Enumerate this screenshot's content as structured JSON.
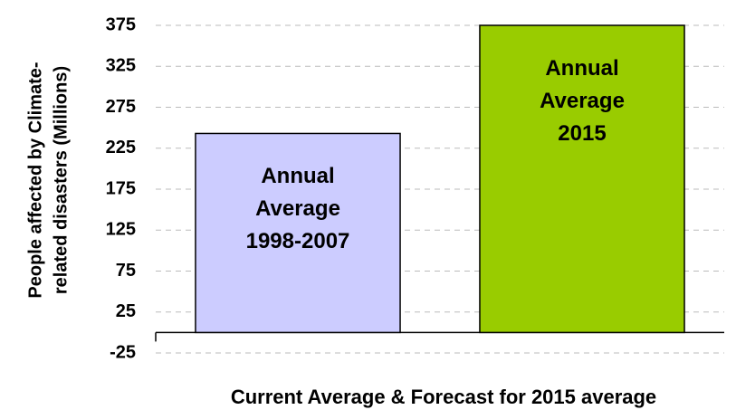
{
  "chart_data": {
    "type": "bar",
    "ylabel": [
      "People affected by Climate-",
      "related disasters (Millions)"
    ],
    "xlabel": "Current Average & Forecast for 2015 average",
    "categories": [
      "Annual Average 1998-2007",
      "Annual Average 2015"
    ],
    "values": [
      243,
      375
    ],
    "colors": [
      "#ccccff",
      "#99cc00"
    ],
    "ylim": [
      -25,
      375
    ],
    "yticks": [
      -25,
      25,
      75,
      125,
      175,
      225,
      275,
      325,
      375
    ],
    "grid": true
  }
}
